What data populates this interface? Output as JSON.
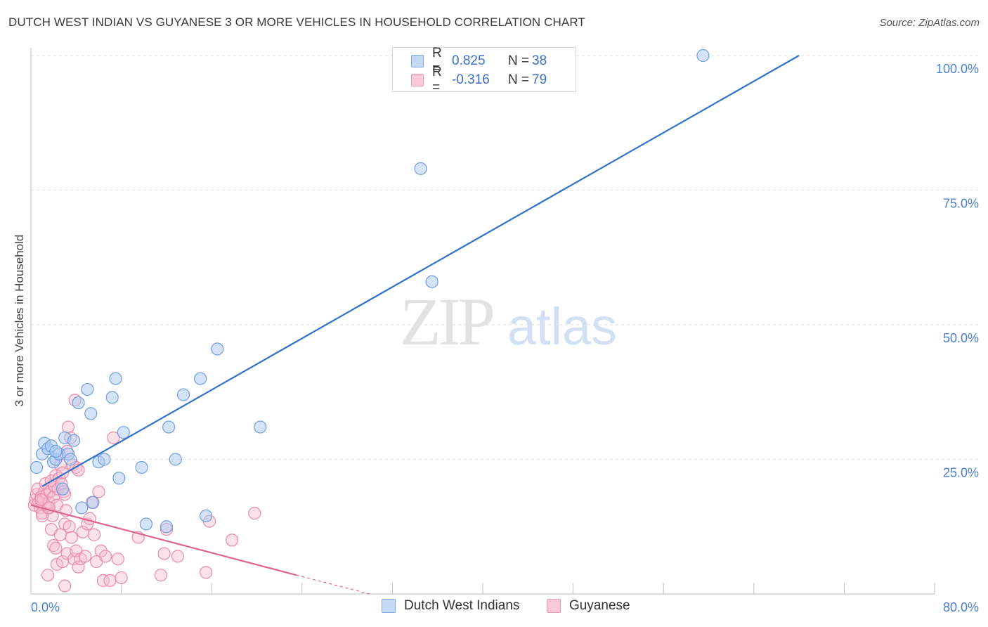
{
  "title": "DUTCH WEST INDIAN VS GUYANESE 3 OR MORE VEHICLES IN HOUSEHOLD CORRELATION CHART",
  "source": "Source: ZipAtlas.com",
  "watermark": {
    "zip": "ZIP",
    "atlas": "atlas"
  },
  "legend_top": [
    {
      "r_label": "R =",
      "r_value": "0.825",
      "n_label": "N =",
      "n_value": "38"
    },
    {
      "r_label": "R =",
      "r_value": "-0.316",
      "n_label": "N =",
      "n_value": "79"
    }
  ],
  "legend_bottom": [
    "Dutch West Indians",
    "Guyanese"
  ],
  "colors": {
    "blue_fill": "#aac8f2",
    "blue_stroke": "#6f9ee0",
    "blue_line": "#2f72cc",
    "pink_fill": "#f7bfd1",
    "pink_stroke": "#eb89a9",
    "pink_line": "#e0628f",
    "tick_text": "#4a7fd0",
    "grid": "#dddddd"
  },
  "chart_data": {
    "type": "scatter",
    "title": "DUTCH WEST INDIAN VS GUYANESE 3 OR MORE VEHICLES IN HOUSEHOLD CORRELATION CHART",
    "xlabel": "",
    "ylabel": "3 or more Vehicles in Household",
    "xlim": [
      0,
      80
    ],
    "ylim": [
      0,
      100
    ],
    "x_tick_labels": [
      "0.0%",
      "80.0%"
    ],
    "y_ticks": [
      25,
      50,
      75,
      100
    ],
    "y_tick_labels": [
      "25.0%",
      "50.0%",
      "75.0%",
      "100.0%"
    ],
    "series": [
      {
        "name": "Dutch West Indians",
        "r": 0.825,
        "n": 38,
        "trend": {
          "x": [
            1.0,
            68.0
          ],
          "y": [
            20.0,
            100.0
          ]
        },
        "points": [
          [
            0.5,
            23.5
          ],
          [
            1.0,
            26.0
          ],
          [
            1.2,
            28.0
          ],
          [
            1.5,
            27.0
          ],
          [
            1.8,
            27.5
          ],
          [
            2.0,
            24.5
          ],
          [
            2.2,
            25.0
          ],
          [
            2.5,
            26.0
          ],
          [
            2.8,
            19.5
          ],
          [
            3.0,
            29.0
          ],
          [
            3.3,
            26.0
          ],
          [
            3.5,
            25.0
          ],
          [
            3.8,
            28.5
          ],
          [
            4.2,
            35.5
          ],
          [
            4.5,
            16.0
          ],
          [
            5.0,
            38.0
          ],
          [
            5.5,
            17.0
          ],
          [
            5.3,
            33.5
          ],
          [
            6.0,
            24.5
          ],
          [
            6.5,
            25.0
          ],
          [
            7.2,
            36.5
          ],
          [
            7.5,
            40.0
          ],
          [
            7.8,
            21.5
          ],
          [
            8.2,
            30.0
          ],
          [
            9.8,
            23.5
          ],
          [
            10.2,
            13.0
          ],
          [
            12.0,
            12.5
          ],
          [
            12.2,
            31.0
          ],
          [
            12.8,
            25.0
          ],
          [
            13.5,
            37.0
          ],
          [
            15.0,
            40.0
          ],
          [
            15.5,
            14.5
          ],
          [
            16.5,
            45.5
          ],
          [
            20.3,
            31.0
          ],
          [
            34.5,
            79.0
          ],
          [
            35.5,
            58.0
          ],
          [
            59.5,
            100.0
          ],
          [
            2.2,
            26.5
          ]
        ]
      },
      {
        "name": "Guyanese",
        "r": -0.316,
        "n": 79,
        "trend": {
          "x": [
            0.0,
            23.5
          ],
          "y": [
            16.5,
            3.5
          ]
        },
        "trend_dashed": {
          "x": [
            23.5,
            30.0
          ],
          "y": [
            3.5,
            0.0
          ]
        },
        "points": [
          [
            0.3,
            16.5
          ],
          [
            0.4,
            17.5
          ],
          [
            0.5,
            18.5
          ],
          [
            0.6,
            19.5
          ],
          [
            0.7,
            17.0
          ],
          [
            0.8,
            16.0
          ],
          [
            0.9,
            18.0
          ],
          [
            1.0,
            15.0
          ],
          [
            1.1,
            17.5
          ],
          [
            1.2,
            19.0
          ],
          [
            1.3,
            20.5
          ],
          [
            1.4,
            18.5
          ],
          [
            1.5,
            16.0
          ],
          [
            1.6,
            17.0
          ],
          [
            1.7,
            19.0
          ],
          [
            1.8,
            21.0
          ],
          [
            1.9,
            14.5
          ],
          [
            2.0,
            18.0
          ],
          [
            2.1,
            20.0
          ],
          [
            2.2,
            22.0
          ],
          [
            2.3,
            16.5
          ],
          [
            2.4,
            19.5
          ],
          [
            2.5,
            21.5
          ],
          [
            2.6,
            24.0
          ],
          [
            2.7,
            20.5
          ],
          [
            2.8,
            22.5
          ],
          [
            2.9,
            19.0
          ],
          [
            3.0,
            18.5
          ],
          [
            3.1,
            15.5
          ],
          [
            3.2,
            26.5
          ],
          [
            3.3,
            31.0
          ],
          [
            3.5,
            29.0
          ],
          [
            3.7,
            24.0
          ],
          [
            3.9,
            36.0
          ],
          [
            4.0,
            23.5
          ],
          [
            4.2,
            23.0
          ],
          [
            1.8,
            12.0
          ],
          [
            2.0,
            9.0
          ],
          [
            2.3,
            5.5
          ],
          [
            2.6,
            11.0
          ],
          [
            2.8,
            6.0
          ],
          [
            3.0,
            13.0
          ],
          [
            3.2,
            7.5
          ],
          [
            3.4,
            12.5
          ],
          [
            3.6,
            10.5
          ],
          [
            3.8,
            6.5
          ],
          [
            4.0,
            8.0
          ],
          [
            4.2,
            5.0
          ],
          [
            4.4,
            6.5
          ],
          [
            4.6,
            11.5
          ],
          [
            4.8,
            7.0
          ],
          [
            5.0,
            13.0
          ],
          [
            5.2,
            14.0
          ],
          [
            5.4,
            17.0
          ],
          [
            5.6,
            11.0
          ],
          [
            5.8,
            6.0
          ],
          [
            6.0,
            19.0
          ],
          [
            6.2,
            8.0
          ],
          [
            6.4,
            2.5
          ],
          [
            6.6,
            7.0
          ],
          [
            7.0,
            2.5
          ],
          [
            7.3,
            29.0
          ],
          [
            7.7,
            6.5
          ],
          [
            8.0,
            3.0
          ],
          [
            9.5,
            10.5
          ],
          [
            11.5,
            3.5
          ],
          [
            11.8,
            7.5
          ],
          [
            12.0,
            12.0
          ],
          [
            13.0,
            7.0
          ],
          [
            15.5,
            4.0
          ],
          [
            15.8,
            13.5
          ],
          [
            17.8,
            10.0
          ],
          [
            19.8,
            15.0
          ],
          [
            1.5,
            3.5
          ],
          [
            3.0,
            1.5
          ],
          [
            2.2,
            8.5
          ],
          [
            1.0,
            14.5
          ],
          [
            0.9,
            17.5
          ],
          [
            1.6,
            16.0
          ]
        ]
      }
    ]
  }
}
